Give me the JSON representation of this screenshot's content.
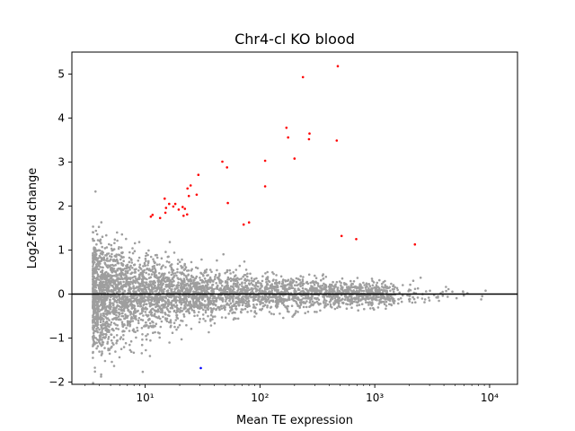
{
  "chart_data": {
    "type": "scatter",
    "title": "Chr4-cl KO blood",
    "xlabel": "Mean TE expression",
    "ylabel": "Log2-fold change",
    "xscale": "log",
    "xlim": [
      2.3,
      17500
    ],
    "ylim": [
      -2.05,
      5.5
    ],
    "xticks": [
      {
        "value": 10,
        "label": "10¹"
      },
      {
        "value": 100,
        "label": "10²"
      },
      {
        "value": 1000,
        "label": "10³"
      },
      {
        "value": 10000,
        "label": "10⁴"
      }
    ],
    "yticks": [
      -2,
      -1,
      0,
      1,
      2,
      3,
      4,
      5
    ],
    "hline": 0,
    "colors": {
      "background": "#9e9e9e",
      "up": "#ff0000",
      "down": "#0000ff",
      "zero_line": "#000000"
    },
    "series": [
      {
        "role": "significant-up",
        "points": [
          [
            476,
            5.18
          ],
          [
            237,
            4.93
          ],
          [
            170,
            3.78
          ],
          [
            270,
            3.65
          ],
          [
            176,
            3.56
          ],
          [
            267,
            3.52
          ],
          [
            466,
            3.49
          ],
          [
            200,
            3.08
          ],
          [
            111,
            3.03
          ],
          [
            47,
            3.01
          ],
          [
            51.7,
            2.88
          ],
          [
            29.1,
            2.71
          ],
          [
            24.9,
            2.47
          ],
          [
            111,
            2.45
          ],
          [
            23.4,
            2.4
          ],
          [
            28.1,
            2.26
          ],
          [
            24.0,
            2.23
          ],
          [
            14.8,
            2.17
          ],
          [
            16.2,
            2.05
          ],
          [
            18.3,
            2.05
          ],
          [
            52.5,
            2.07
          ],
          [
            17.6,
            1.99
          ],
          [
            21.2,
            1.98
          ],
          [
            15.2,
            1.96
          ],
          [
            19.6,
            1.92
          ],
          [
            22.2,
            1.94
          ],
          [
            15.0,
            1.85
          ],
          [
            21.6,
            1.78
          ],
          [
            11.6,
            1.8
          ],
          [
            11.2,
            1.76
          ],
          [
            13.5,
            1.73
          ],
          [
            23.2,
            1.81
          ],
          [
            80.3,
            1.63
          ],
          [
            72.1,
            1.58
          ],
          [
            514,
            1.32
          ],
          [
            689,
            1.25
          ],
          [
            2236,
            1.13
          ]
        ]
      },
      {
        "role": "significant-down",
        "points": [
          [
            30.5,
            -1.68
          ]
        ]
      }
    ]
  }
}
